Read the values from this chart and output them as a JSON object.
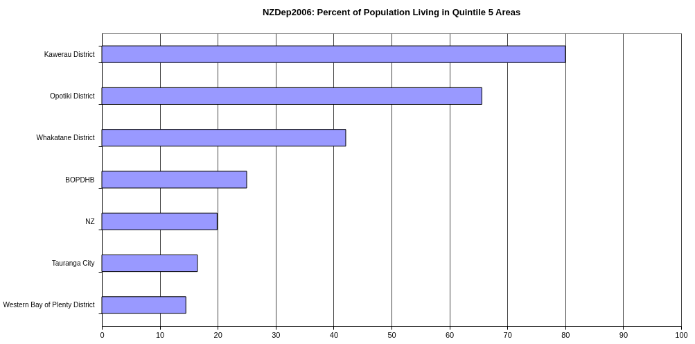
{
  "chart_data": {
    "type": "bar",
    "orientation": "horizontal",
    "title": "NZDep2006: Percent of Population Living in Quintile 5 Areas",
    "categories": [
      "Kawerau District",
      "Opotiki District",
      "Whakatane District",
      "BOPDHB",
      "NZ",
      "Tauranga City",
      "Western Bay of Plenty District"
    ],
    "values": [
      80,
      65.6,
      42.1,
      25.0,
      19.9,
      16.5,
      14.5
    ],
    "color": "#9999ff",
    "xlim": [
      0,
      100
    ],
    "xticks": [
      0,
      10,
      20,
      30,
      40,
      50,
      60,
      70,
      80,
      90,
      100
    ],
    "grid": "x"
  }
}
